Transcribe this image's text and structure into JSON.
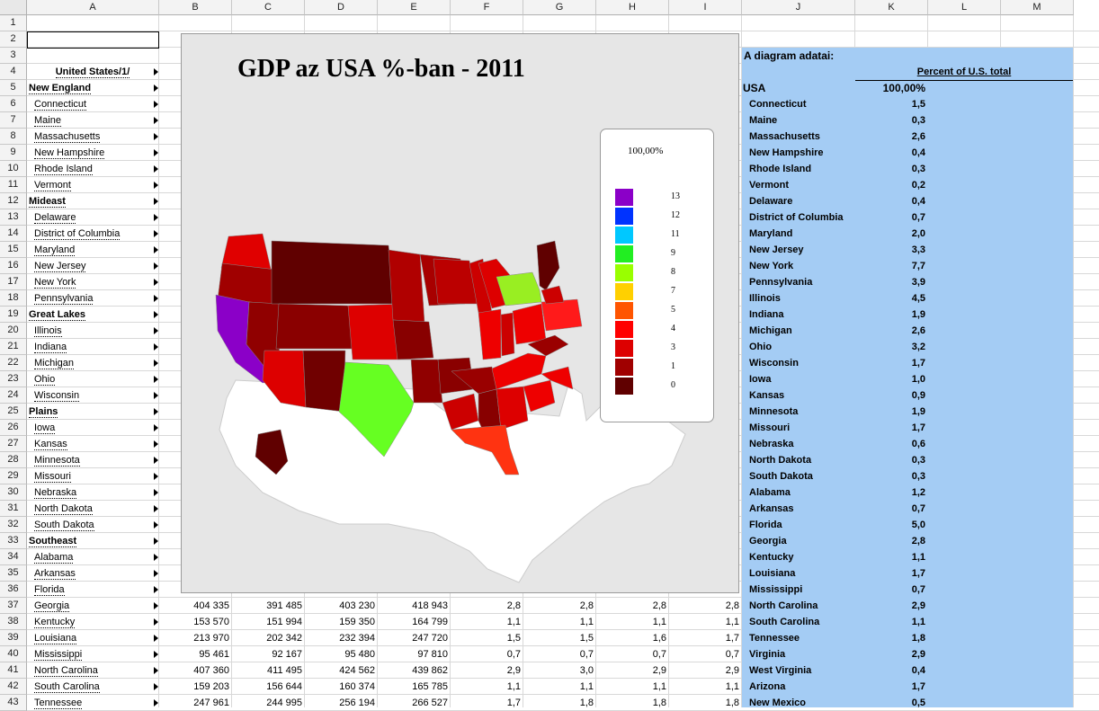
{
  "columns": [
    "A",
    "B",
    "C",
    "D",
    "E",
    "F",
    "G",
    "H",
    "I",
    "J",
    "K",
    "L",
    "M"
  ],
  "rows": [
    "1",
    "2",
    "3",
    "4",
    "5",
    "6",
    "7",
    "8",
    "9",
    "10",
    "11",
    "12",
    "13",
    "14",
    "15",
    "16",
    "17",
    "18",
    "19",
    "20",
    "21",
    "22",
    "23",
    "24",
    "25",
    "26",
    "27",
    "28",
    "29",
    "30",
    "31",
    "32",
    "33",
    "34",
    "35",
    "36",
    "37",
    "38",
    "39",
    "40",
    "41",
    "42",
    "43"
  ],
  "col_a": [
    {
      "text": "United States/1/",
      "style": "header"
    },
    {
      "text": "New England",
      "style": "bold"
    },
    {
      "text": "Connecticut",
      "style": "item"
    },
    {
      "text": "Maine",
      "style": "item"
    },
    {
      "text": "Massachusetts",
      "style": "item"
    },
    {
      "text": "New Hampshire",
      "style": "item"
    },
    {
      "text": "Rhode Island",
      "style": "item"
    },
    {
      "text": "Vermont",
      "style": "item"
    },
    {
      "text": "Mideast",
      "style": "bold"
    },
    {
      "text": "Delaware",
      "style": "item"
    },
    {
      "text": "District of Columbia",
      "style": "item"
    },
    {
      "text": "Maryland",
      "style": "item"
    },
    {
      "text": "New Jersey",
      "style": "item"
    },
    {
      "text": "New York",
      "style": "item"
    },
    {
      "text": "Pennsylvania",
      "style": "item"
    },
    {
      "text": "Great Lakes",
      "style": "bold"
    },
    {
      "text": "Illinois",
      "style": "item"
    },
    {
      "text": "Indiana",
      "style": "item"
    },
    {
      "text": "Michigan",
      "style": "item"
    },
    {
      "text": "Ohio",
      "style": "item"
    },
    {
      "text": "Wisconsin",
      "style": "item"
    },
    {
      "text": "Plains",
      "style": "bold"
    },
    {
      "text": "Iowa",
      "style": "item"
    },
    {
      "text": "Kansas",
      "style": "item"
    },
    {
      "text": "Minnesota",
      "style": "item"
    },
    {
      "text": "Missouri",
      "style": "item"
    },
    {
      "text": "Nebraska",
      "style": "item"
    },
    {
      "text": "North Dakota",
      "style": "item"
    },
    {
      "text": "South Dakota",
      "style": "item"
    },
    {
      "text": "Southeast",
      "style": "bold"
    },
    {
      "text": "Alabama",
      "style": "item"
    },
    {
      "text": "Arkansas",
      "style": "item"
    },
    {
      "text": "Florida",
      "style": "item"
    },
    {
      "text": "Georgia",
      "style": "item"
    },
    {
      "text": "Kentucky",
      "style": "item"
    },
    {
      "text": "Louisiana",
      "style": "item"
    },
    {
      "text": "Mississippi",
      "style": "item"
    },
    {
      "text": "North Carolina",
      "style": "item"
    },
    {
      "text": "South Carolina",
      "style": "item"
    },
    {
      "text": "Tennessee",
      "style": "item"
    }
  ],
  "numeric_rows": [
    {
      "b": "404 335",
      "c": "391 485",
      "d": "403 230",
      "e": "418 943",
      "f": "2,8",
      "g": "2,8",
      "h": "2,8",
      "i": "2,8"
    },
    {
      "b": "153 570",
      "c": "151 994",
      "d": "159 350",
      "e": "164 799",
      "f": "1,1",
      "g": "1,1",
      "h": "1,1",
      "i": "1,1"
    },
    {
      "b": "213 970",
      "c": "202 342",
      "d": "232 394",
      "e": "247 720",
      "f": "1,5",
      "g": "1,5",
      "h": "1,6",
      "i": "1,7"
    },
    {
      "b": "95 461",
      "c": "92 167",
      "d": "95 480",
      "e": "97 810",
      "f": "0,7",
      "g": "0,7",
      "h": "0,7",
      "i": "0,7"
    },
    {
      "b": "407 360",
      "c": "411 495",
      "d": "424 562",
      "e": "439 862",
      "f": "2,9",
      "g": "3,0",
      "h": "2,9",
      "i": "2,9"
    },
    {
      "b": "159 203",
      "c": "156 644",
      "d": "160 374",
      "e": "165 785",
      "f": "1,1",
      "g": "1,1",
      "h": "1,1",
      "i": "1,1"
    },
    {
      "b": "247 961",
      "c": "244 995",
      "d": "256 194",
      "e": "266 527",
      "f": "1,7",
      "g": "1,8",
      "h": "1,8",
      "i": "1,8"
    }
  ],
  "diagram_data": {
    "label": "A diagram adatai:",
    "header": "Percent of U.S. total",
    "usa_label": "USA",
    "usa_value": "100,00%",
    "states": [
      [
        "Connecticut",
        "1,5"
      ],
      [
        "Maine",
        "0,3"
      ],
      [
        "Massachusetts",
        "2,6"
      ],
      [
        "New Hampshire",
        "0,4"
      ],
      [
        "Rhode Island",
        "0,3"
      ],
      [
        "Vermont",
        "0,2"
      ],
      [
        "Delaware",
        "0,4"
      ],
      [
        "District of Columbia",
        "0,7"
      ],
      [
        "Maryland",
        "2,0"
      ],
      [
        "New Jersey",
        "3,3"
      ],
      [
        "New York",
        "7,7"
      ],
      [
        "Pennsylvania",
        "3,9"
      ],
      [
        "Illinois",
        "4,5"
      ],
      [
        "Indiana",
        "1,9"
      ],
      [
        "Michigan",
        "2,6"
      ],
      [
        "Ohio",
        "3,2"
      ],
      [
        "Wisconsin",
        "1,7"
      ],
      [
        "Iowa",
        "1,0"
      ],
      [
        "Kansas",
        "0,9"
      ],
      [
        "Minnesota",
        "1,9"
      ],
      [
        "Missouri",
        "1,7"
      ],
      [
        "Nebraska",
        "0,6"
      ],
      [
        "North Dakota",
        "0,3"
      ],
      [
        "South Dakota",
        "0,3"
      ],
      [
        "Alabama",
        "1,2"
      ],
      [
        "Arkansas",
        "0,7"
      ],
      [
        "Florida",
        "5,0"
      ],
      [
        "Georgia",
        "2,8"
      ],
      [
        "Kentucky",
        "1,1"
      ],
      [
        "Louisiana",
        "1,7"
      ],
      [
        "Mississippi",
        "0,7"
      ],
      [
        "North Carolina",
        "2,9"
      ],
      [
        "South Carolina",
        "1,1"
      ],
      [
        "Tennessee",
        "1,8"
      ],
      [
        "Virginia",
        "2,9"
      ],
      [
        "West Virginia",
        "0,4"
      ],
      [
        "Arizona",
        "1,7"
      ],
      [
        "New Mexico",
        "0,5"
      ]
    ]
  },
  "chart": {
    "title": "GDP az USA %-ban - 2011",
    "legend_title": "100,00%",
    "legend": [
      {
        "label": "13",
        "color": "#8b00c8"
      },
      {
        "label": "12",
        "color": "#0033ff"
      },
      {
        "label": "11",
        "color": "#00c8ff"
      },
      {
        "label": "9",
        "color": "#22ee22"
      },
      {
        "label": "8",
        "color": "#99ff00"
      },
      {
        "label": "7",
        "color": "#ffd000"
      },
      {
        "label": "5",
        "color": "#ff5500"
      },
      {
        "label": "4",
        "color": "#ff0000"
      },
      {
        "label": "3",
        "color": "#dd0000"
      },
      {
        "label": "1",
        "color": "#a00000"
      },
      {
        "label": "0",
        "color": "#600000"
      }
    ]
  }
}
